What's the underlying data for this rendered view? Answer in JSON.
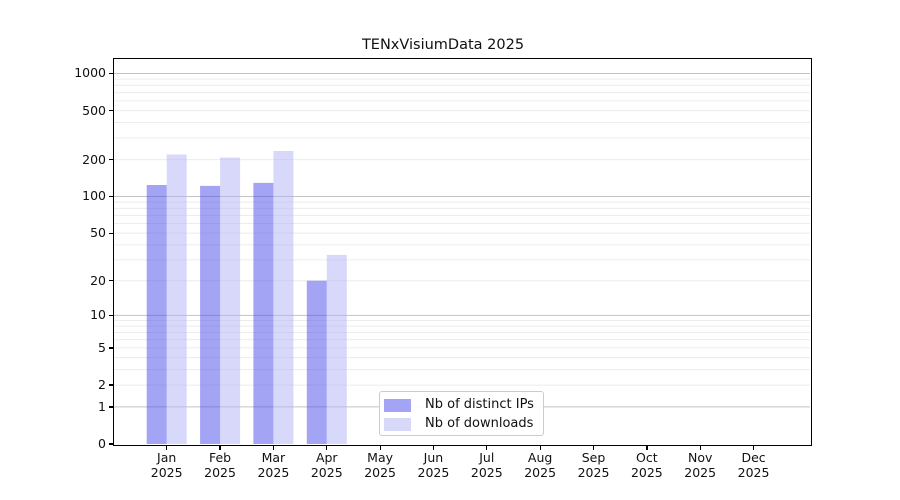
{
  "title": "TENxVisiumData 2025",
  "legend": {
    "items": [
      {
        "label": "Nb of distinct IPs",
        "color": "#a4a4f4"
      },
      {
        "label": "Nb of downloads",
        "color": "#d8d8f8"
      }
    ]
  },
  "chart_data": {
    "type": "bar",
    "title": "TENxVisiumData 2025",
    "categories": [
      "Jan 2025",
      "Feb 2025",
      "Mar 2025",
      "Apr 2025",
      "May 2025",
      "Jun 2025",
      "Jul 2025",
      "Aug 2025",
      "Sep 2025",
      "Oct 2025",
      "Nov 2025",
      "Dec 2025"
    ],
    "months": [
      "Jan",
      "Feb",
      "Mar",
      "Apr",
      "May",
      "Jun",
      "Jul",
      "Aug",
      "Sep",
      "Oct",
      "Nov",
      "Dec"
    ],
    "year": "2025",
    "series": [
      {
        "name": "Nb of distinct IPs",
        "fill": "rgba(73,73,235,0.5)",
        "values": [
          124,
          122,
          129,
          20,
          null,
          null,
          null,
          null,
          null,
          null,
          null,
          null
        ]
      },
      {
        "name": "Nb of downloads",
        "fill": "rgba(178,178,245,0.5)",
        "values": [
          220,
          208,
          235,
          33,
          null,
          null,
          null,
          null,
          null,
          null,
          null,
          null
        ]
      }
    ],
    "yscale": "log1p",
    "yticks": [
      1000,
      500,
      200,
      100,
      50,
      20,
      10,
      5,
      2,
      1,
      0
    ],
    "ylim": [
      0,
      1310
    ],
    "xlabel": "",
    "ylabel": "",
    "grid": "horizontal",
    "legend_position": "inside-lower-center"
  },
  "colors": {
    "major_grid": "#c3c3c3",
    "minor_grid": "#ececec",
    "spine": "#000000",
    "background": "#ffffff"
  }
}
